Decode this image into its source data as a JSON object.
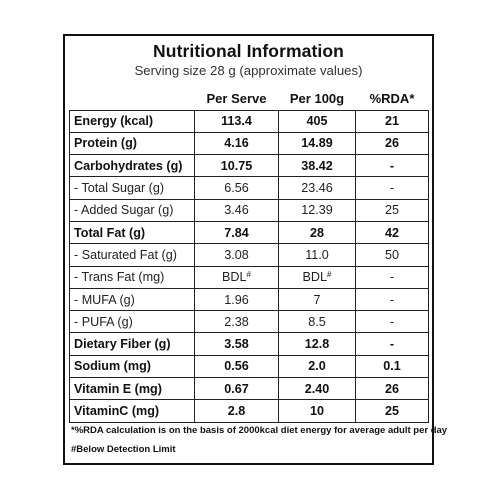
{
  "header": {
    "title": "Nutritional Information",
    "subtitle": "Serving size 28 g (approximate values)"
  },
  "columns": [
    "",
    "Per Serve",
    "Per 100g",
    "%RDA*"
  ],
  "rows": [
    {
      "name": "Energy (kcal)",
      "per_serve": "113.4",
      "per_100g": "405",
      "rda": "21",
      "bold": true
    },
    {
      "name": "Protein (g)",
      "per_serve": "4.16",
      "per_100g": "14.89",
      "rda": "26",
      "bold": true
    },
    {
      "name": "Carbohydrates (g)",
      "per_serve": "10.75",
      "per_100g": "38.42",
      "rda": "-",
      "bold": true
    },
    {
      "name": "- Total Sugar (g)",
      "per_serve": "6.56",
      "per_100g": "23.46",
      "rda": "-",
      "bold": false
    },
    {
      "name": "- Added Sugar (g)",
      "per_serve": "3.46",
      "per_100g": "12.39",
      "rda": "25",
      "bold": false
    },
    {
      "name": "Total Fat (g)",
      "per_serve": "7.84",
      "per_100g": "28",
      "rda": "42",
      "bold": true
    },
    {
      "name": "- Saturated Fat (g)",
      "per_serve": "3.08",
      "per_100g": "11.0",
      "rda": "50",
      "bold": false
    },
    {
      "name": "- Trans Fat (mg)",
      "per_serve": "BDL#",
      "per_100g": "BDL#",
      "rda": "-",
      "bold": false
    },
    {
      "name": "- MUFA (g)",
      "per_serve": "1.96",
      "per_100g": "7",
      "rda": "-",
      "bold": false
    },
    {
      "name": "- PUFA (g)",
      "per_serve": "2.38",
      "per_100g": "8.5",
      "rda": "-",
      "bold": false
    },
    {
      "name": "Dietary Fiber (g)",
      "per_serve": "3.58",
      "per_100g": "12.8",
      "rda": "-",
      "bold": true
    },
    {
      "name": "Sodium (mg)",
      "per_serve": "0.56",
      "per_100g": "2.0",
      "rda": "0.1",
      "bold": true
    },
    {
      "name": "Vitamin E (mg)",
      "per_serve": "0.67",
      "per_100g": "2.40",
      "rda": "26",
      "bold": true
    },
    {
      "name": "VitaminC (mg)",
      "per_serve": "2.8",
      "per_100g": "10",
      "rda": "25",
      "bold": true
    }
  ],
  "footnotes": {
    "rda": "*%RDA calculation is on the basis of 2000kcal diet energy for average adult per day",
    "bdl": "#Below Detection Limit"
  }
}
